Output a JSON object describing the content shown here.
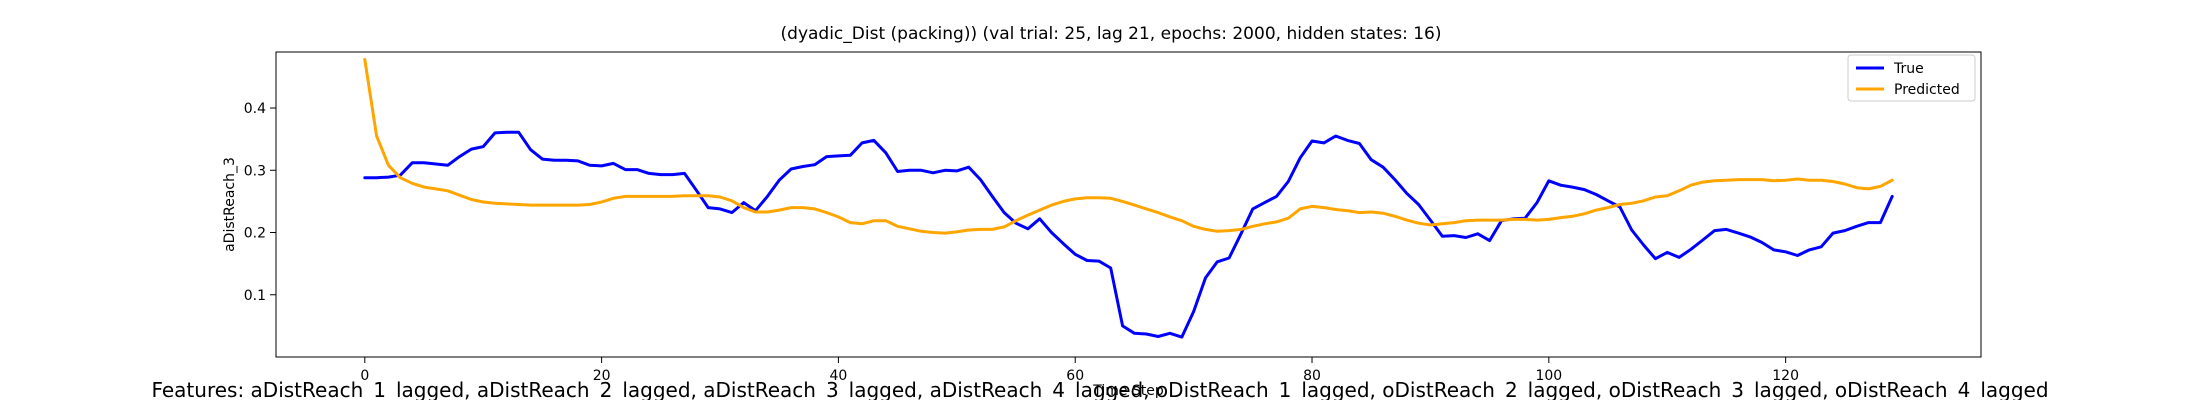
{
  "chart_data": {
    "type": "line",
    "title": "(dyadic_Dist (packing)) (val trial: 25, lag 21, epochs: 2000, hidden states: 16)",
    "xlabel": "Time Step",
    "ylabel": "aDistReach_3",
    "xlim": [
      -7.5,
      136.5
    ],
    "ylim": [
      0.0,
      0.49
    ],
    "xticks": [
      0,
      20,
      40,
      60,
      80,
      100,
      120
    ],
    "yticks": [
      0.1,
      0.2,
      0.3,
      0.4
    ],
    "grid": false,
    "legend_position": "top-right",
    "series": [
      {
        "name": "True",
        "color": "#0000ff",
        "values": [
          0.288,
          0.288,
          0.289,
          0.292,
          0.312,
          0.312,
          0.31,
          0.308,
          0.322,
          0.334,
          0.338,
          0.36,
          0.361,
          0.361,
          0.333,
          0.318,
          0.316,
          0.316,
          0.315,
          0.308,
          0.307,
          0.311,
          0.301,
          0.301,
          0.295,
          0.293,
          0.293,
          0.295,
          0.268,
          0.24,
          0.238,
          0.232,
          0.248,
          0.235,
          0.258,
          0.284,
          0.302,
          0.306,
          0.309,
          0.322,
          0.323,
          0.324,
          0.344,
          0.348,
          0.328,
          0.298,
          0.3,
          0.3,
          0.296,
          0.3,
          0.299,
          0.305,
          0.285,
          0.258,
          0.232,
          0.215,
          0.206,
          0.222,
          0.2,
          0.182,
          0.165,
          0.155,
          0.154,
          0.143,
          0.05,
          0.038,
          0.037,
          0.033,
          0.038,
          0.032,
          0.073,
          0.127,
          0.153,
          0.159,
          0.198,
          0.238,
          0.248,
          0.258,
          0.282,
          0.32,
          0.347,
          0.344,
          0.355,
          0.348,
          0.343,
          0.317,
          0.305,
          0.285,
          0.263,
          0.245,
          0.22,
          0.194,
          0.195,
          0.192,
          0.198,
          0.187,
          0.219,
          0.222,
          0.223,
          0.248,
          0.283,
          0.276,
          0.273,
          0.269,
          0.261,
          0.251,
          0.241,
          0.204,
          0.18,
          0.158,
          0.168,
          0.16,
          0.173,
          0.188,
          0.203,
          0.205,
          0.199,
          0.193,
          0.184,
          0.172,
          0.169,
          0.163,
          0.172,
          0.177,
          0.199,
          0.203,
          0.21,
          0.216,
          0.216,
          0.258
        ]
      },
      {
        "name": "Predicted",
        "color": "#ffa500",
        "values": [
          0.478,
          0.355,
          0.308,
          0.288,
          0.279,
          0.273,
          0.27,
          0.267,
          0.26,
          0.253,
          0.249,
          0.247,
          0.246,
          0.245,
          0.244,
          0.244,
          0.244,
          0.244,
          0.244,
          0.245,
          0.249,
          0.255,
          0.258,
          0.258,
          0.258,
          0.258,
          0.258,
          0.259,
          0.259,
          0.259,
          0.257,
          0.251,
          0.24,
          0.233,
          0.233,
          0.236,
          0.24,
          0.24,
          0.238,
          0.232,
          0.225,
          0.216,
          0.214,
          0.219,
          0.219,
          0.21,
          0.206,
          0.202,
          0.2,
          0.199,
          0.201,
          0.204,
          0.205,
          0.205,
          0.209,
          0.219,
          0.228,
          0.236,
          0.244,
          0.25,
          0.254,
          0.256,
          0.256,
          0.255,
          0.25,
          0.244,
          0.238,
          0.232,
          0.225,
          0.219,
          0.21,
          0.205,
          0.202,
          0.203,
          0.205,
          0.21,
          0.214,
          0.217,
          0.223,
          0.238,
          0.242,
          0.24,
          0.237,
          0.235,
          0.232,
          0.233,
          0.231,
          0.226,
          0.22,
          0.215,
          0.212,
          0.214,
          0.216,
          0.219,
          0.22,
          0.22,
          0.22,
          0.221,
          0.221,
          0.22,
          0.221,
          0.224,
          0.226,
          0.23,
          0.236,
          0.24,
          0.245,
          0.247,
          0.251,
          0.257,
          0.259,
          0.267,
          0.276,
          0.281,
          0.283,
          0.284,
          0.285,
          0.285,
          0.285,
          0.283,
          0.284,
          0.286,
          0.284,
          0.284,
          0.282,
          0.278,
          0.272,
          0.27,
          0.274,
          0.284
        ]
      }
    ]
  },
  "features_text": "Features: aDistReach_1_lagged, aDistReach_2_lagged, aDistReach_3_lagged, aDistReach_4_lagged, oDistReach_1_lagged, oDistReach_2_lagged, oDistReach_3_lagged, oDistReach_4_lagged"
}
